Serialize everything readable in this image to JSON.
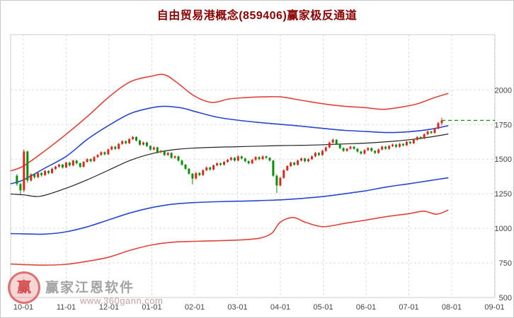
{
  "title": "自由贸易港概念(859406)赢家极反通道",
  "watermark": {
    "brand": "赢家江恩软件",
    "url": "www.360gann.com",
    "logo_text": "赢"
  },
  "colors": {
    "title": "#8b0000",
    "up_candle": "#d9281e",
    "down_candle": "#0a8f0a",
    "band_red": "#e0433b",
    "band_blue": "#2946cf",
    "mid_black": "#222222",
    "current_price_green": "#009900",
    "grid": "#dcdcdc",
    "axis_text": "#444444",
    "plot_border": "#cccccc"
  },
  "chart_data": {
    "type": "candlestick",
    "title": "自由贸易港概念(859406)赢家极反通道",
    "x_ticks": [
      "10-01",
      "11-01",
      "12-01",
      "01-01",
      "02-01",
      "03-01",
      "04-01",
      "05-01",
      "06-01",
      "07-01",
      "08-01",
      "09-01"
    ],
    "y_ticks": [
      2000,
      1750,
      1500,
      1250,
      1000,
      750,
      500
    ],
    "ylim": [
      500,
      2400
    ],
    "grid": "dashed",
    "legend_position": "none",
    "current_price_line": {
      "value": 1780,
      "style": "dashed",
      "color": "#009900"
    },
    "candles": [
      [
        1380,
        1392,
        1308,
        1320
      ],
      [
        1320,
        1328,
        1248,
        1275
      ],
      [
        1275,
        1570,
        1262,
        1555
      ],
      [
        1555,
        1562,
        1330,
        1345
      ],
      [
        1345,
        1398,
        1338,
        1390
      ],
      [
        1390,
        1396,
        1358,
        1370
      ],
      [
        1370,
        1408,
        1362,
        1400
      ],
      [
        1400,
        1406,
        1374,
        1385
      ],
      [
        1385,
        1422,
        1378,
        1415
      ],
      [
        1415,
        1420,
        1390,
        1400
      ],
      [
        1400,
        1438,
        1394,
        1430
      ],
      [
        1430,
        1452,
        1422,
        1445
      ],
      [
        1445,
        1468,
        1438,
        1460
      ],
      [
        1460,
        1466,
        1432,
        1440
      ],
      [
        1440,
        1482,
        1434,
        1475
      ],
      [
        1475,
        1480,
        1446,
        1455
      ],
      [
        1455,
        1496,
        1448,
        1490
      ],
      [
        1490,
        1495,
        1462,
        1470
      ],
      [
        1470,
        1476,
        1436,
        1445
      ],
      [
        1445,
        1487,
        1440,
        1480
      ],
      [
        1480,
        1507,
        1474,
        1500
      ],
      [
        1500,
        1505,
        1477,
        1485
      ],
      [
        1485,
        1522,
        1480,
        1515
      ],
      [
        1515,
        1537,
        1508,
        1530
      ],
      [
        1530,
        1557,
        1524,
        1550
      ],
      [
        1550,
        1556,
        1527,
        1535
      ],
      [
        1535,
        1577,
        1530,
        1570
      ],
      [
        1570,
        1597,
        1563,
        1590
      ],
      [
        1590,
        1596,
        1567,
        1575
      ],
      [
        1575,
        1617,
        1570,
        1610
      ],
      [
        1610,
        1637,
        1604,
        1630
      ],
      [
        1630,
        1636,
        1607,
        1615
      ],
      [
        1615,
        1652,
        1610,
        1645
      ],
      [
        1645,
        1668,
        1638,
        1660
      ],
      [
        1660,
        1665,
        1627,
        1635
      ],
      [
        1635,
        1641,
        1597,
        1605
      ],
      [
        1605,
        1627,
        1598,
        1620
      ],
      [
        1620,
        1626,
        1587,
        1595
      ],
      [
        1595,
        1600,
        1562,
        1570
      ],
      [
        1570,
        1592,
        1563,
        1585
      ],
      [
        1585,
        1590,
        1542,
        1550
      ],
      [
        1550,
        1567,
        1543,
        1560
      ],
      [
        1560,
        1565,
        1522,
        1530
      ],
      [
        1530,
        1552,
        1523,
        1545
      ],
      [
        1545,
        1550,
        1502,
        1510
      ],
      [
        1510,
        1527,
        1503,
        1520
      ],
      [
        1520,
        1525,
        1482,
        1490
      ],
      [
        1490,
        1496,
        1452,
        1460
      ],
      [
        1460,
        1465,
        1422,
        1430
      ],
      [
        1430,
        1436,
        1387,
        1395
      ],
      [
        1395,
        1400,
        1318,
        1360
      ],
      [
        1360,
        1407,
        1353,
        1400
      ],
      [
        1400,
        1405,
        1377,
        1385
      ],
      [
        1385,
        1427,
        1379,
        1420
      ],
      [
        1420,
        1447,
        1413,
        1440
      ],
      [
        1440,
        1445,
        1417,
        1425
      ],
      [
        1425,
        1462,
        1419,
        1455
      ],
      [
        1455,
        1477,
        1448,
        1470
      ],
      [
        1470,
        1475,
        1452,
        1460
      ],
      [
        1460,
        1487,
        1454,
        1480
      ],
      [
        1480,
        1502,
        1473,
        1495
      ],
      [
        1495,
        1517,
        1488,
        1510
      ],
      [
        1510,
        1515,
        1482,
        1490
      ],
      [
        1490,
        1527,
        1484,
        1520
      ],
      [
        1520,
        1525,
        1497,
        1505
      ],
      [
        1505,
        1510,
        1477,
        1485
      ],
      [
        1485,
        1490,
        1462,
        1470
      ],
      [
        1470,
        1502,
        1464,
        1495
      ],
      [
        1495,
        1522,
        1488,
        1515
      ],
      [
        1515,
        1520,
        1492,
        1500
      ],
      [
        1500,
        1527,
        1494,
        1520
      ],
      [
        1520,
        1525,
        1502,
        1510
      ],
      [
        1510,
        1515,
        1482,
        1490
      ],
      [
        1490,
        1494,
        1372,
        1380
      ],
      [
        1380,
        1390,
        1255,
        1310
      ],
      [
        1310,
        1372,
        1302,
        1365
      ],
      [
        1365,
        1427,
        1358,
        1420
      ],
      [
        1420,
        1457,
        1413,
        1450
      ],
      [
        1450,
        1482,
        1443,
        1475
      ],
      [
        1475,
        1480,
        1452,
        1460
      ],
      [
        1460,
        1497,
        1453,
        1490
      ],
      [
        1490,
        1512,
        1483,
        1505
      ],
      [
        1505,
        1510,
        1477,
        1485
      ],
      [
        1485,
        1507,
        1478,
        1500
      ],
      [
        1500,
        1527,
        1494,
        1520
      ],
      [
        1520,
        1552,
        1514,
        1545
      ],
      [
        1545,
        1550,
        1522,
        1530
      ],
      [
        1530,
        1567,
        1524,
        1560
      ],
      [
        1560,
        1592,
        1553,
        1585
      ],
      [
        1585,
        1627,
        1578,
        1620
      ],
      [
        1620,
        1650,
        1613,
        1640
      ],
      [
        1640,
        1645,
        1602,
        1610
      ],
      [
        1610,
        1615,
        1572,
        1580
      ],
      [
        1580,
        1585,
        1552,
        1560
      ],
      [
        1560,
        1582,
        1553,
        1575
      ],
      [
        1575,
        1597,
        1568,
        1590
      ],
      [
        1590,
        1595,
        1567,
        1575
      ],
      [
        1575,
        1580,
        1547,
        1555
      ],
      [
        1555,
        1560,
        1532,
        1540
      ],
      [
        1540,
        1572,
        1533,
        1565
      ],
      [
        1565,
        1587,
        1558,
        1580
      ],
      [
        1580,
        1585,
        1552,
        1560
      ],
      [
        1560,
        1565,
        1537,
        1545
      ],
      [
        1545,
        1577,
        1538,
        1570
      ],
      [
        1570,
        1597,
        1563,
        1590
      ],
      [
        1590,
        1595,
        1567,
        1575
      ],
      [
        1575,
        1602,
        1568,
        1595
      ],
      [
        1595,
        1612,
        1588,
        1605
      ],
      [
        1605,
        1610,
        1582,
        1590
      ],
      [
        1590,
        1617,
        1583,
        1610
      ],
      [
        1610,
        1615,
        1592,
        1600
      ],
      [
        1600,
        1632,
        1594,
        1625
      ],
      [
        1625,
        1630,
        1607,
        1615
      ],
      [
        1615,
        1647,
        1608,
        1640
      ],
      [
        1640,
        1667,
        1633,
        1660
      ],
      [
        1660,
        1665,
        1642,
        1650
      ],
      [
        1650,
        1687,
        1644,
        1680
      ],
      [
        1680,
        1707,
        1673,
        1700
      ],
      [
        1700,
        1705,
        1682,
        1690
      ],
      [
        1690,
        1727,
        1684,
        1720
      ],
      [
        1720,
        1770,
        1714,
        1760
      ],
      [
        1760,
        1800,
        1745,
        1780
      ]
    ],
    "bands": {
      "upper_red": [
        [
          -0.3,
          1415
        ],
        [
          0,
          1450
        ],
        [
          0.5,
          1560
        ],
        [
          1,
          1680
        ],
        [
          1.5,
          1810
        ],
        [
          2,
          1950
        ],
        [
          2.5,
          2060
        ],
        [
          3,
          2100
        ],
        [
          3.3,
          2110
        ],
        [
          3.6,
          2050
        ],
        [
          4,
          1955
        ],
        [
          4.4,
          1910
        ],
        [
          4.8,
          1935
        ],
        [
          5.2,
          1945
        ],
        [
          5.6,
          1950
        ],
        [
          6,
          1950
        ],
        [
          6.5,
          1925
        ],
        [
          7,
          1900
        ],
        [
          7.5,
          1882
        ],
        [
          8,
          1872
        ],
        [
          8.4,
          1860
        ],
        [
          8.8,
          1875
        ],
        [
          9.2,
          1900
        ],
        [
          9.6,
          1945
        ],
        [
          9.92,
          1975
        ]
      ],
      "upper_blue": [
        [
          -0.3,
          1322
        ],
        [
          0,
          1350
        ],
        [
          0.5,
          1435
        ],
        [
          1,
          1520
        ],
        [
          1.5,
          1645
        ],
        [
          2,
          1745
        ],
        [
          2.5,
          1830
        ],
        [
          3,
          1872
        ],
        [
          3.3,
          1882
        ],
        [
          3.7,
          1870
        ],
        [
          4,
          1845
        ],
        [
          4.5,
          1805
        ],
        [
          5,
          1782
        ],
        [
          5.5,
          1765
        ],
        [
          6,
          1752
        ],
        [
          6.5,
          1738
        ],
        [
          7,
          1722
        ],
        [
          7.5,
          1708
        ],
        [
          8,
          1700
        ],
        [
          8.5,
          1692
        ],
        [
          9,
          1698
        ],
        [
          9.5,
          1716
        ],
        [
          9.92,
          1742
        ]
      ],
      "mid_black": [
        [
          -0.3,
          1248
        ],
        [
          0,
          1242
        ],
        [
          0.4,
          1232
        ],
        [
          1,
          1290
        ],
        [
          1.5,
          1352
        ],
        [
          2,
          1422
        ],
        [
          2.5,
          1492
        ],
        [
          3,
          1540
        ],
        [
          3.5,
          1568
        ],
        [
          4,
          1580
        ],
        [
          4.5,
          1586
        ],
        [
          5,
          1590
        ],
        [
          5.5,
          1594
        ],
        [
          6,
          1598
        ],
        [
          6.5,
          1600
        ],
        [
          7,
          1604
        ],
        [
          7.5,
          1610
        ],
        [
          8,
          1616
        ],
        [
          8.5,
          1626
        ],
        [
          9,
          1640
        ],
        [
          9.5,
          1660
        ],
        [
          9.92,
          1682
        ]
      ],
      "lower_blue": [
        [
          -0.3,
          962
        ],
        [
          0,
          960
        ],
        [
          0.5,
          958
        ],
        [
          1,
          975
        ],
        [
          1.5,
          1012
        ],
        [
          2,
          1062
        ],
        [
          2.5,
          1112
        ],
        [
          3,
          1150
        ],
        [
          3.5,
          1175
        ],
        [
          4,
          1186
        ],
        [
          4.5,
          1192
        ],
        [
          5,
          1196
        ],
        [
          5.5,
          1200
        ],
        [
          6,
          1206
        ],
        [
          6.5,
          1216
        ],
        [
          7,
          1230
        ],
        [
          7.5,
          1250
        ],
        [
          8,
          1272
        ],
        [
          8.5,
          1300
        ],
        [
          9,
          1322
        ],
        [
          9.5,
          1346
        ],
        [
          9.92,
          1365
        ]
      ],
      "lower_red": [
        [
          -0.3,
          742
        ],
        [
          0,
          738
        ],
        [
          0.5,
          734
        ],
        [
          1,
          740
        ],
        [
          1.5,
          762
        ],
        [
          2,
          792
        ],
        [
          2.5,
          842
        ],
        [
          3,
          880
        ],
        [
          3.5,
          900
        ],
        [
          4,
          906
        ],
        [
          4.5,
          910
        ],
        [
          5,
          915
        ],
        [
          5.5,
          928
        ],
        [
          5.8,
          965
        ],
        [
          6,
          1045
        ],
        [
          6.3,
          1078
        ],
        [
          6.6,
          1042
        ],
        [
          7,
          1012
        ],
        [
          7.5,
          1036
        ],
        [
          8,
          1060
        ],
        [
          8.5,
          1086
        ],
        [
          9,
          1106
        ],
        [
          9.35,
          1124
        ],
        [
          9.65,
          1102
        ],
        [
          9.92,
          1132
        ]
      ]
    }
  }
}
